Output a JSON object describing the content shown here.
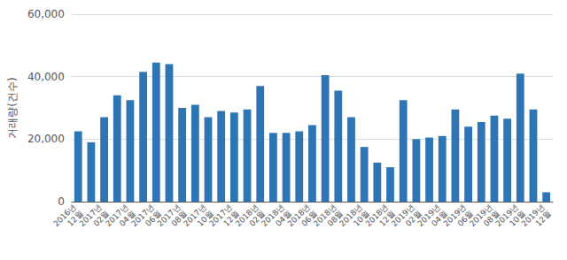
{
  "chart_data": {
    "type": "bar",
    "ylabel": "거래량(건수)",
    "categories": [
      "2016년\n12월",
      null,
      "2017년\n02월",
      null,
      "2017년\n04월",
      null,
      "2017년\n06월",
      null,
      "2017년\n08월",
      null,
      "2017년\n10월",
      null,
      "2017년\n12월",
      null,
      "2018년\n02월",
      null,
      "2018년\n04월",
      null,
      "2018년\n06월",
      null,
      "2018년\n08월",
      null,
      "2018년\n10월",
      null,
      "2018년\n12월",
      null,
      "2019년\n02월",
      null,
      "2019년\n04월",
      null,
      "2019년\n06월",
      null,
      "2019년\n08월",
      null,
      "2019년\n10월",
      null,
      "2019년\n12월"
    ],
    "values": [
      22500,
      19000,
      27000,
      34000,
      32500,
      41500,
      44500,
      44000,
      30000,
      31000,
      27000,
      29000,
      28500,
      29500,
      37000,
      22000,
      22000,
      22500,
      24500,
      40500,
      35500,
      27000,
      17500,
      12500,
      11000,
      32500,
      20000,
      20500,
      21000,
      29500,
      24000,
      25500,
      27500,
      26500,
      41000,
      29500,
      3000
    ],
    "color": "#2e75b6",
    "ylim": [
      0,
      60000
    ],
    "yticks": [
      0,
      {
        "value": 20000,
        "label": "20,000"
      },
      {
        "value": 40000,
        "label": "40,000"
      },
      {
        "value": 60000,
        "label": "60,000"
      }
    ],
    "grid": true
  }
}
